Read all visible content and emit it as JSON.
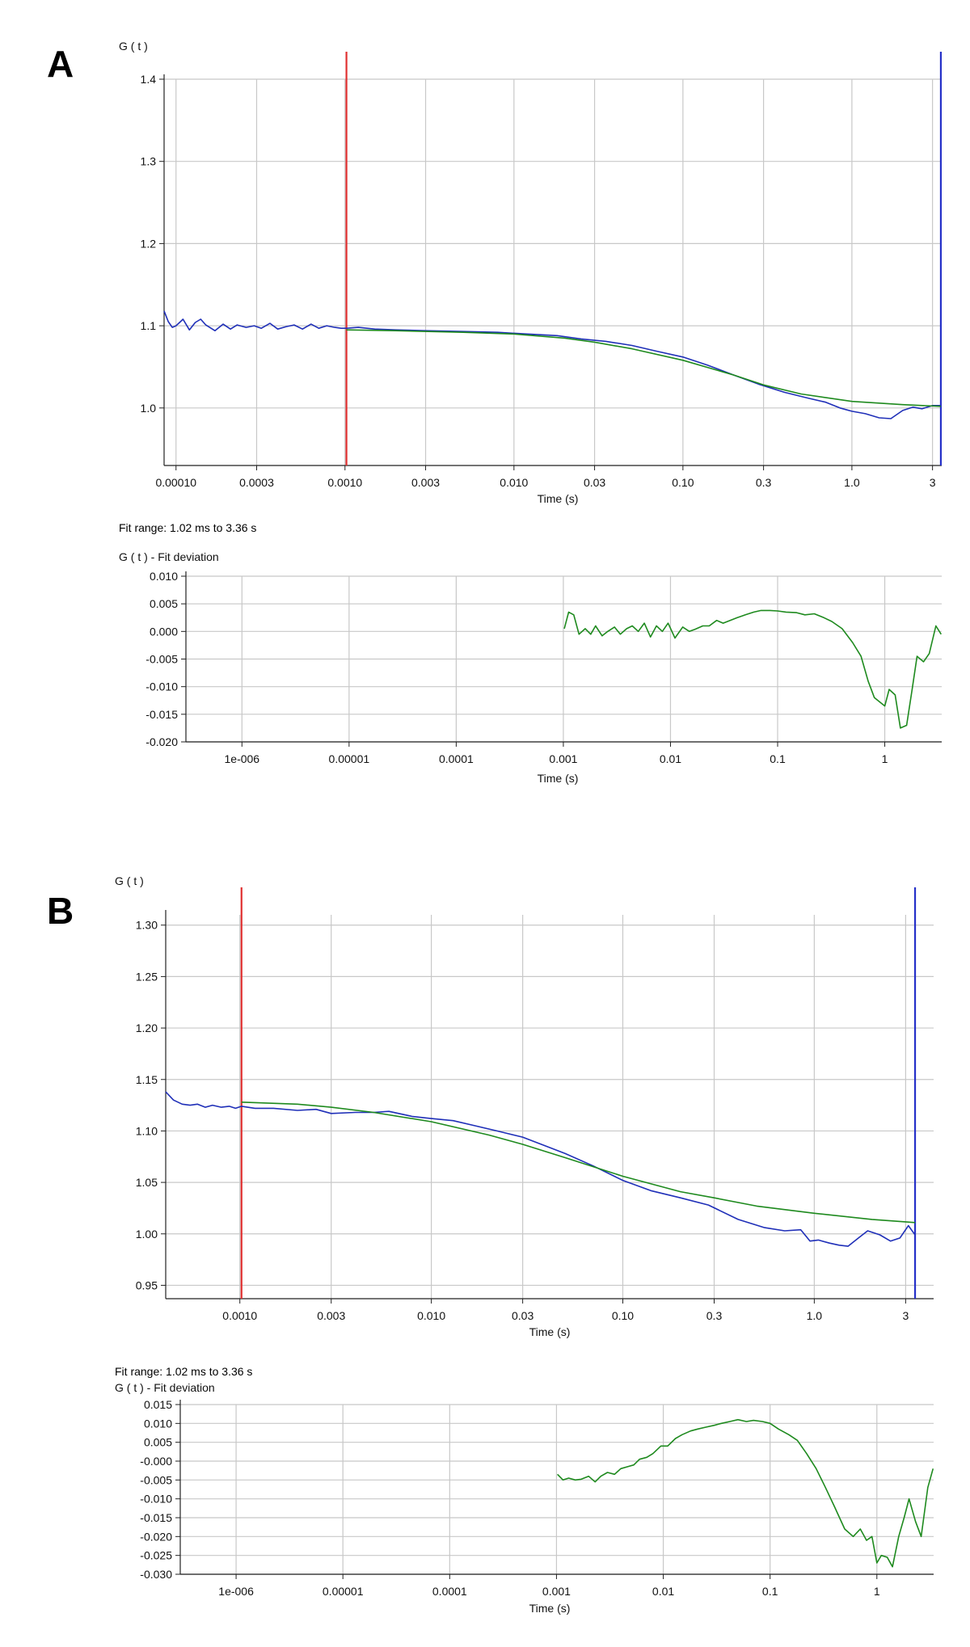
{
  "panels": [
    {
      "letter": "A",
      "fit_range": "Fit range:  1.02 ms to 3.36 s",
      "main": {
        "chart_data": {
          "type": "line",
          "title": "",
          "ylabel": "G ( t )",
          "xlabel": "Time (s)",
          "x_scale": "log",
          "xlim": [
            8.5e-05,
            3.4
          ],
          "ylim": [
            0.93,
            1.4
          ],
          "yticks": [
            1.0,
            1.1,
            1.2,
            1.3,
            1.4
          ],
          "ytick_labels": [
            "1.0",
            "1.1",
            "1.2",
            "1.3",
            "1.4"
          ],
          "xticks": [
            0.0001,
            0.0003,
            0.001,
            0.003,
            0.01,
            0.03,
            0.1,
            0.3,
            1.0,
            3.0
          ],
          "xtick_labels": [
            "0.00010",
            "0.0003",
            "0.0010",
            "0.003",
            "0.010",
            "0.03",
            "0.10",
            "0.3",
            "1.0",
            "3"
          ],
          "grid": true,
          "cursor_start": 0.00102,
          "cursor_end": 3.36,
          "series": [
            {
              "color": "#1f2fb8",
              "x": [
                8.5e-05,
                9e-05,
                9.5e-05,
                0.0001,
                0.000105,
                0.00011,
                0.00012,
                0.00013,
                0.00014,
                0.00015,
                0.00017,
                0.00019,
                0.00021,
                0.00023,
                0.00026,
                0.00029,
                0.00032,
                0.00036,
                0.0004,
                0.00045,
                0.0005,
                0.00056,
                0.00063,
                0.0007,
                0.00078,
                0.00087,
                0.00095,
                0.00102,
                0.0012,
                0.0015,
                0.002,
                0.003,
                0.005,
                0.008,
                0.012,
                0.018,
                0.025,
                0.035,
                0.05,
                0.07,
                0.1,
                0.14,
                0.2,
                0.28,
                0.4,
                0.55,
                0.7,
                0.85,
                1.0,
                1.2,
                1.45,
                1.7,
                2.0,
                2.3,
                2.6,
                3.0,
                3.36
              ],
              "y": [
                1.118,
                1.105,
                1.098,
                1.1,
                1.104,
                1.108,
                1.095,
                1.104,
                1.108,
                1.101,
                1.094,
                1.102,
                1.096,
                1.101,
                1.098,
                1.1,
                1.097,
                1.103,
                1.096,
                1.099,
                1.101,
                1.096,
                1.102,
                1.097,
                1.1,
                1.098,
                1.097,
                1.097,
                1.098,
                1.096,
                1.095,
                1.094,
                1.093,
                1.092,
                1.09,
                1.088,
                1.084,
                1.081,
                1.076,
                1.069,
                1.062,
                1.052,
                1.04,
                1.029,
                1.019,
                1.012,
                1.007,
                1.0,
                0.996,
                0.993,
                0.988,
                0.987,
                0.997,
                1.001,
                0.999,
                1.003,
                1.003
              ]
            },
            {
              "color": "#1e8a1e",
              "x": [
                0.00102,
                0.002,
                0.005,
                0.01,
                0.02,
                0.03,
                0.05,
                0.1,
                0.2,
                0.3,
                0.5,
                1.0,
                2.0,
                3.36
              ],
              "y": [
                1.095,
                1.094,
                1.092,
                1.09,
                1.085,
                1.08,
                1.072,
                1.058,
                1.04,
                1.028,
                1.017,
                1.008,
                1.004,
                1.002
              ]
            }
          ]
        }
      },
      "residual": {
        "chart_data": {
          "type": "line",
          "title": "",
          "ylabel": "G ( t ) - Fit deviation",
          "xlabel": "Time (s)",
          "x_scale": "log",
          "xlim": [
            3e-07,
            3.4
          ],
          "ylim": [
            -0.02,
            0.01
          ],
          "yticks": [
            -0.02,
            -0.015,
            -0.01,
            -0.005,
            0.0,
            0.005,
            0.01
          ],
          "ytick_labels": [
            "-0.020",
            "-0.015",
            "-0.010",
            "-0.005",
            "0.000",
            "0.005",
            "0.010"
          ],
          "xticks": [
            1e-06,
            1e-05,
            0.0001,
            0.001,
            0.01,
            0.1,
            1
          ],
          "xtick_labels": [
            "1e-006",
            "0.00001",
            "0.0001",
            "0.001",
            "0.01",
            "0.1",
            "1"
          ],
          "grid": true,
          "series": [
            {
              "color": "#1e8a1e",
              "x": [
                0.00102,
                0.00112,
                0.00125,
                0.0014,
                0.0016,
                0.0018,
                0.002,
                0.0023,
                0.0026,
                0.003,
                0.0034,
                0.0039,
                0.0044,
                0.005,
                0.0057,
                0.0065,
                0.0074,
                0.0084,
                0.0095,
                0.011,
                0.013,
                0.015,
                0.017,
                0.02,
                0.023,
                0.027,
                0.031,
                0.036,
                0.042,
                0.05,
                0.06,
                0.07,
                0.085,
                0.1,
                0.12,
                0.15,
                0.18,
                0.22,
                0.27,
                0.32,
                0.4,
                0.5,
                0.6,
                0.7,
                0.8,
                0.9,
                1.0,
                1.1,
                1.25,
                1.4,
                1.6,
                1.8,
                2.0,
                2.3,
                2.6,
                3.0,
                3.36
              ],
              "y": [
                0.0005,
                0.0035,
                0.003,
                -0.0005,
                0.0005,
                -0.0005,
                0.001,
                -0.0008,
                0.0,
                0.0008,
                -0.0005,
                0.0005,
                0.001,
                0.0,
                0.0015,
                -0.001,
                0.001,
                0.0,
                0.0015,
                -0.0012,
                0.0008,
                0.0,
                0.0004,
                0.001,
                0.001,
                0.002,
                0.0015,
                0.002,
                0.0025,
                0.003,
                0.0035,
                0.0038,
                0.0038,
                0.0037,
                0.0035,
                0.0034,
                0.003,
                0.0032,
                0.0025,
                0.0018,
                0.0005,
                -0.002,
                -0.0045,
                -0.009,
                -0.012,
                -0.0128,
                -0.0135,
                -0.0105,
                -0.0115,
                -0.0175,
                -0.017,
                -0.0105,
                -0.0045,
                -0.0055,
                -0.004,
                0.001,
                -0.0005
              ]
            }
          ]
        }
      }
    },
    {
      "letter": "B",
      "fit_range": "Fit range:  1.02 ms to 3.36 s",
      "main": {
        "chart_data": {
          "type": "line",
          "title": "",
          "ylabel": "G ( t )",
          "xlabel": "Time (s)",
          "x_scale": "log",
          "xlim": [
            0.00041,
            4.2
          ],
          "ylim": [
            0.937,
            1.31
          ],
          "yticks": [
            0.95,
            1.0,
            1.05,
            1.1,
            1.15,
            1.2,
            1.25,
            1.3
          ],
          "ytick_labels": [
            "0.95",
            "1.00",
            "1.05",
            "1.10",
            "1.15",
            "1.20",
            "1.25",
            "1.30"
          ],
          "xticks": [
            0.001,
            0.003,
            0.01,
            0.03,
            0.1,
            0.3,
            1.0,
            3.0
          ],
          "xtick_labels": [
            "0.0010",
            "0.003",
            "0.010",
            "0.03",
            "0.10",
            "0.3",
            "1.0",
            "3"
          ],
          "grid": true,
          "cursor_start": 0.00102,
          "cursor_end": 3.36,
          "series": [
            {
              "color": "#1f2fb8",
              "x": [
                0.00041,
                0.00045,
                0.0005,
                0.00055,
                0.0006,
                0.00066,
                0.00072,
                0.0008,
                0.00088,
                0.00095,
                0.00102,
                0.0012,
                0.0015,
                0.002,
                0.0025,
                0.003,
                0.004,
                0.005,
                0.006,
                0.008,
                0.01,
                0.013,
                0.017,
                0.022,
                0.03,
                0.04,
                0.05,
                0.07,
                0.1,
                0.14,
                0.2,
                0.28,
                0.4,
                0.55,
                0.7,
                0.85,
                0.95,
                1.05,
                1.2,
                1.35,
                1.5,
                1.7,
                1.9,
                2.2,
                2.5,
                2.8,
                3.1,
                3.36
              ],
              "y": [
                1.138,
                1.13,
                1.126,
                1.125,
                1.126,
                1.123,
                1.125,
                1.123,
                1.124,
                1.122,
                1.124,
                1.122,
                1.122,
                1.12,
                1.121,
                1.117,
                1.118,
                1.118,
                1.119,
                1.114,
                1.112,
                1.11,
                1.105,
                1.1,
                1.094,
                1.085,
                1.078,
                1.066,
                1.052,
                1.042,
                1.035,
                1.028,
                1.014,
                1.006,
                1.003,
                1.004,
                0.993,
                0.994,
                0.991,
                0.989,
                0.988,
                0.996,
                1.003,
                0.999,
                0.993,
                0.996,
                1.008,
                0.999
              ]
            },
            {
              "color": "#1e8a1e",
              "x": [
                0.00102,
                0.002,
                0.003,
                0.005,
                0.01,
                0.02,
                0.03,
                0.05,
                0.1,
                0.2,
                0.3,
                0.5,
                1.0,
                2.0,
                3.36
              ],
              "y": [
                1.128,
                1.126,
                1.123,
                1.118,
                1.109,
                1.096,
                1.087,
                1.074,
                1.056,
                1.041,
                1.035,
                1.027,
                1.02,
                1.014,
                1.011
              ]
            }
          ]
        }
      },
      "residual": {
        "chart_data": {
          "type": "line",
          "title": "",
          "ylabel": "G ( t ) - Fit deviation",
          "xlabel": "Time (s)",
          "x_scale": "log",
          "xlim": [
            3e-07,
            3.4
          ],
          "ylim": [
            -0.03,
            0.015
          ],
          "yticks": [
            -0.03,
            -0.025,
            -0.02,
            -0.015,
            -0.01,
            -0.005,
            0.0,
            0.005,
            0.01,
            0.015
          ],
          "ytick_labels": [
            "-0.030",
            "-0.025",
            "-0.020",
            "-0.015",
            "-0.010",
            "-0.005",
            "-0.000",
            "0.005",
            "0.010",
            "0.015"
          ],
          "xticks": [
            1e-06,
            1e-05,
            0.0001,
            0.001,
            0.01,
            0.1,
            1
          ],
          "xtick_labels": [
            "1e-006",
            "0.00001",
            "0.0001",
            "0.001",
            "0.01",
            "0.1",
            "1"
          ],
          "grid": true,
          "series": [
            {
              "color": "#1e8a1e",
              "x": [
                0.00102,
                0.00115,
                0.0013,
                0.0015,
                0.0017,
                0.002,
                0.0023,
                0.0026,
                0.003,
                0.0035,
                0.004,
                0.0046,
                0.0053,
                0.006,
                0.007,
                0.008,
                0.0095,
                0.011,
                0.013,
                0.015,
                0.018,
                0.021,
                0.025,
                0.03,
                0.035,
                0.042,
                0.05,
                0.06,
                0.07,
                0.085,
                0.1,
                0.12,
                0.15,
                0.18,
                0.22,
                0.27,
                0.33,
                0.4,
                0.5,
                0.6,
                0.7,
                0.8,
                0.9,
                1.0,
                1.1,
                1.25,
                1.4,
                1.6,
                1.8,
                2.0,
                2.3,
                2.6,
                3.0,
                3.36
              ],
              "y": [
                -0.0035,
                -0.005,
                -0.0045,
                -0.005,
                -0.0048,
                -0.004,
                -0.0055,
                -0.004,
                -0.003,
                -0.0035,
                -0.002,
                -0.0015,
                -0.001,
                0.0005,
                0.001,
                0.002,
                0.004,
                0.004,
                0.006,
                0.007,
                0.008,
                0.0085,
                0.009,
                0.0095,
                0.01,
                0.0105,
                0.011,
                0.0105,
                0.0108,
                0.0105,
                0.01,
                0.0085,
                0.007,
                0.0055,
                0.002,
                -0.002,
                -0.007,
                -0.012,
                -0.018,
                -0.02,
                -0.018,
                -0.021,
                -0.02,
                -0.027,
                -0.025,
                -0.0255,
                -0.028,
                -0.02,
                -0.015,
                -0.01,
                -0.016,
                -0.02,
                -0.007,
                -0.002
              ]
            }
          ]
        }
      }
    }
  ]
}
